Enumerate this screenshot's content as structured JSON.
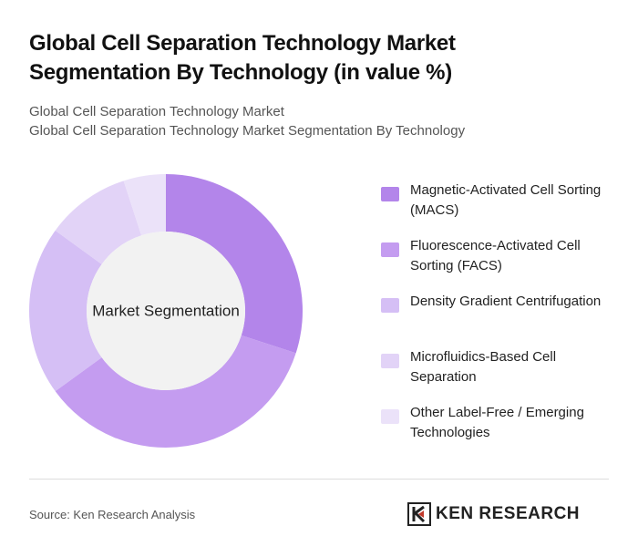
{
  "chart_data": {
    "type": "pie",
    "title": "Global Cell Separation Technology Market Segmentation By Technology (in value %)",
    "subtitle": [
      "Global Cell Separation Technology Market",
      "Global Cell Separation Technology Market Segmentation By Technology"
    ],
    "center_label": "Market Segmentation",
    "categories": [
      "Magnetic-Activated Cell Sorting (MACS)",
      "Fluorescence-Activated Cell Sorting (FACS)",
      "Density Gradient Centrifugation",
      "Microfluidics-Based Cell Separation",
      "Other Label-Free / Emerging Technologies"
    ],
    "values": [
      30,
      35,
      20,
      10,
      5
    ],
    "colors": [
      "#b385ea",
      "#c49cf0",
      "#d5bff5",
      "#e2d3f7",
      "#ebe2f9"
    ],
    "source": "Source: Ken Research Analysis",
    "brand": "KEN RESEARCH"
  }
}
